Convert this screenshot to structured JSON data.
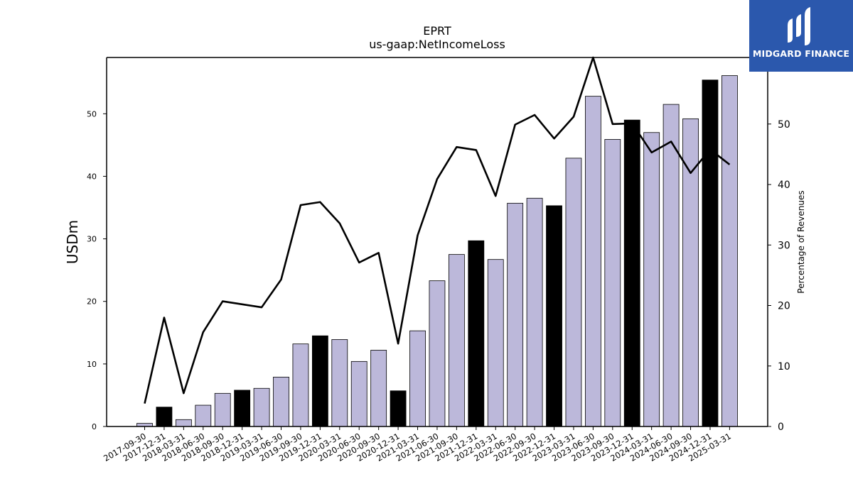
{
  "chart_data": {
    "type": "bar",
    "title": "EPRT",
    "subtitle": "us-gaap:NetIncomeLoss",
    "ylabel": "USDm",
    "y2label": "Percentage of Revenues",
    "ylim": [
      0,
      59
    ],
    "y2lim": [
      0,
      61
    ],
    "yticks": [
      0,
      10,
      20,
      30,
      40,
      50
    ],
    "y2ticks": [
      0,
      10,
      20,
      30,
      40,
      50
    ],
    "categories": [
      "2017-09-30",
      "2017-12-31",
      "2018-03-31",
      "2018-06-30",
      "2018-09-30",
      "2018-12-31",
      "2019-03-31",
      "2019-06-30",
      "2019-09-30",
      "2019-12-31",
      "2020-03-31",
      "2020-06-30",
      "2020-09-30",
      "2020-12-31",
      "2021-03-31",
      "2021-06-30",
      "2021-09-30",
      "2021-12-31",
      "2022-03-31",
      "2022-06-30",
      "2022-09-30",
      "2022-12-31",
      "2023-03-31",
      "2023-06-30",
      "2023-09-30",
      "2023-12-31",
      "2024-03-31",
      "2024-06-30",
      "2024-09-30",
      "2024-12-31",
      "2025-03-31"
    ],
    "series": [
      {
        "kind": "bar",
        "axis": "left",
        "values": [
          0.5,
          3.1,
          1.1,
          3.4,
          5.3,
          5.8,
          6.1,
          7.9,
          13.2,
          14.5,
          13.9,
          10.4,
          12.2,
          5.7,
          15.3,
          23.3,
          27.5,
          29.7,
          26.7,
          35.7,
          36.5,
          35.3,
          42.9,
          52.8,
          45.9,
          49.0,
          47.0,
          51.5,
          49.2,
          55.4,
          56.1
        ],
        "year_end_highlight": [
          false,
          true,
          false,
          false,
          false,
          true,
          false,
          false,
          false,
          true,
          false,
          false,
          false,
          true,
          false,
          false,
          false,
          true,
          false,
          false,
          false,
          true,
          false,
          false,
          false,
          true,
          false,
          false,
          false,
          true,
          false
        ]
      },
      {
        "kind": "line",
        "axis": "right",
        "values": [
          3.8,
          18.0,
          5.5,
          15.6,
          20.7,
          20.2,
          19.7,
          24.3,
          36.6,
          37.1,
          33.6,
          27.1,
          28.7,
          13.7,
          31.6,
          40.9,
          46.2,
          45.7,
          38.1,
          49.9,
          51.5,
          47.6,
          51.2,
          61.0,
          50.0,
          50.1,
          45.3,
          47.1,
          41.9,
          45.8,
          43.3
        ]
      }
    ],
    "colors": {
      "bar": "#bcb8da",
      "bar_highlight": "#000000",
      "line": "#000000"
    },
    "grid": false,
    "legend": "none"
  },
  "logo": {
    "text": "MIDGARD FINANCE",
    "background": "#2b58ad"
  }
}
